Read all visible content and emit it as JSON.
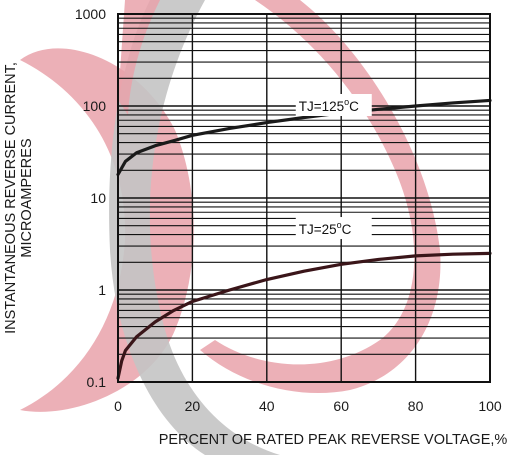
{
  "chart_data": {
    "type": "line",
    "title": "",
    "xlabel": "PERCENT OF RATED PEAK REVERSE VOLTAGE,%",
    "ylabel_line1": "INSTANTANEOUS REVERSE CURRENT,",
    "ylabel_line2": "MICROAMPERES",
    "xlim": [
      0,
      100
    ],
    "ylim": [
      0.1,
      1000
    ],
    "yscale": "log",
    "x_ticks": [
      "0",
      "20",
      "40",
      "60",
      "80",
      "100"
    ],
    "y_ticks": [
      "0.1",
      "1",
      "10",
      "100",
      "1000"
    ],
    "grid": true,
    "series": [
      {
        "annotation": {
          "text_main": "TJ=125",
          "text_sup": "o",
          "text_tail": "C",
          "x": 58,
          "y": 100
        },
        "color": "#1a1a1a",
        "x": [
          0,
          2,
          5,
          10,
          15,
          20,
          30,
          40,
          50,
          60,
          70,
          80,
          90,
          100
        ],
        "y": [
          18,
          25,
          31,
          37,
          42,
          48,
          57,
          66,
          75,
          84,
          92,
          100,
          108,
          115
        ]
      },
      {
        "annotation": {
          "text_main": "TJ=25",
          "text_sup": "o",
          "text_tail": "C",
          "x": 58,
          "y": 4.6
        },
        "color": "#3a1519",
        "x": [
          0,
          1,
          2,
          5,
          10,
          15,
          20,
          30,
          40,
          50,
          60,
          70,
          80,
          90,
          100
        ],
        "y": [
          0.11,
          0.17,
          0.22,
          0.31,
          0.45,
          0.6,
          0.75,
          1.0,
          1.3,
          1.6,
          1.9,
          2.15,
          2.35,
          2.45,
          2.5
        ]
      }
    ]
  },
  "colors": {
    "axis": "#111111",
    "watermark_red": "#e9a2aa",
    "watermark_gray": "#c4c4c4"
  }
}
